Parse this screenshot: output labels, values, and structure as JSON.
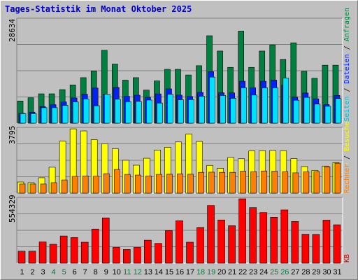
{
  "title": "Tages-Statistik im Monat Oktober 2025",
  "colors": {
    "bg": "#c0c0c0",
    "anfragen": "#008040",
    "dateien": "#0020ff",
    "seiten": "#00e0ff",
    "besuche": "#ffff00",
    "rechner": "#ff8000",
    "kb": "#ff0000",
    "weekend_label": "#008040",
    "title_color": "#0000cc"
  },
  "chart_data": [
    {
      "type": "bar",
      "panel": "top",
      "ymax_label": "28634",
      "ylim": [
        0,
        28634
      ],
      "categories": [
        "1",
        "2",
        "3",
        "4",
        "5",
        "6",
        "7",
        "8",
        "9",
        "10",
        "11",
        "12",
        "13",
        "14",
        "15",
        "16",
        "17",
        "18",
        "19",
        "20",
        "21",
        "22",
        "23",
        "24",
        "25",
        "26",
        "27",
        "28",
        "29",
        "30",
        "31"
      ],
      "series": [
        {
          "name": "Anfragen",
          "values": [
            6140,
            7030,
            8120,
            8120,
            9280,
            10580,
            12590,
            14430,
            20160,
            16340,
            11900,
            12590,
            9160,
            11690,
            14900,
            14900,
            13330,
            15890,
            24180,
            19940,
            15430,
            25460,
            15430,
            19940,
            21650,
            17650,
            22220,
            14330,
            12420,
            16030,
            16030
          ]
        },
        {
          "name": "Dateien",
          "values": [
            2790,
            3050,
            4590,
            5130,
            5880,
            6960,
            8010,
            9710,
            7960,
            9900,
            7440,
            7740,
            7160,
            8100,
            9480,
            7760,
            7370,
            8520,
            14250,
            8420,
            8380,
            11600,
            9800,
            11600,
            11900,
            10500,
            7220,
            8340,
            6740,
            5170,
            7680
          ]
        },
        {
          "name": "Seiten",
          "values": [
            2660,
            2660,
            4280,
            4280,
            4930,
            5890,
            6740,
            4830,
            8010,
            6620,
            5960,
            6040,
            6400,
            5570,
            7990,
            6490,
            6530,
            7430,
            12750,
            7660,
            6880,
            9780,
            7780,
            9780,
            9780,
            12470,
            6360,
            7140,
            5290,
            4670,
            6820
          ]
        }
      ]
    },
    {
      "type": "bar",
      "panel": "middle",
      "ymax_label": "3795",
      "ylim": [
        0,
        3795
      ],
      "categories": [
        "1",
        "2",
        "3",
        "4",
        "5",
        "6",
        "7",
        "8",
        "9",
        "10",
        "11",
        "12",
        "13",
        "14",
        "15",
        "16",
        "17",
        "18",
        "19",
        "20",
        "21",
        "22",
        "23",
        "24",
        "25",
        "26",
        "27",
        "28",
        "29",
        "30",
        "31"
      ],
      "series": [
        {
          "name": "Besuche",
          "values": [
            660,
            620,
            910,
            1530,
            3070,
            3790,
            3670,
            3150,
            2910,
            2620,
            1940,
            1650,
            2060,
            2540,
            2710,
            3020,
            3480,
            3050,
            1640,
            1470,
            2110,
            2030,
            2490,
            2500,
            2520,
            2500,
            2040,
            1570,
            1340,
            1600,
            1800
          ]
        },
        {
          "name": "Rechner",
          "values": [
            540,
            540,
            540,
            620,
            780,
            990,
            1020,
            1000,
            1150,
            1400,
            1110,
            1070,
            1020,
            1110,
            1120,
            1140,
            1120,
            1230,
            1240,
            1230,
            1230,
            1300,
            1270,
            1310,
            1300,
            1270,
            1200,
            1260,
            1270,
            1560,
            1770
          ]
        }
      ]
    },
    {
      "type": "bar",
      "panel": "bottom",
      "ymax_label": "554329",
      "ylim": [
        0,
        554329
      ],
      "categories": [
        "1",
        "2",
        "3",
        "4",
        "5",
        "6",
        "7",
        "8",
        "9",
        "10",
        "11",
        "12",
        "13",
        "14",
        "15",
        "16",
        "17",
        "18",
        "19",
        "20",
        "21",
        "22",
        "23",
        "24",
        "25",
        "26",
        "27",
        "28",
        "29",
        "30",
        "31"
      ],
      "series": [
        {
          "name": "KB",
          "values": [
            103500,
            103500,
            183100,
            162900,
            234300,
            221000,
            180800,
            294000,
            390100,
            135800,
            118100,
            135800,
            198100,
            170200,
            281100,
            365600,
            180800,
            308000,
            495900,
            372300,
            322700,
            554300,
            478200,
            435500,
            395700,
            458200,
            359000,
            249500,
            247900,
            371000,
            330800
          ]
        }
      ]
    }
  ],
  "xaxis": {
    "labels": [
      "1",
      "2",
      "3",
      "4",
      "5",
      "6",
      "7",
      "8",
      "9",
      "10",
      "11",
      "12",
      "13",
      "14",
      "15",
      "16",
      "17",
      "18",
      "19",
      "20",
      "21",
      "22",
      "23",
      "24",
      "25",
      "26",
      "27",
      "28",
      "29",
      "30",
      "31"
    ],
    "weekend_days": [
      "4",
      "5",
      "11",
      "12",
      "18",
      "19",
      "25",
      "26"
    ]
  },
  "right_legend": {
    "anfragen": "Anfragen",
    "dateien": "Dateien",
    "seiten": "Seiten",
    "besuche": "Besuche",
    "rechner": "Rechner",
    "kb": "KB",
    "sep": " / "
  }
}
